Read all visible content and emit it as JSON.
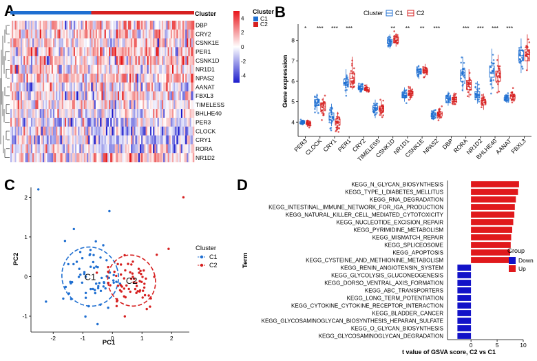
{
  "colors": {
    "c1": "#1f6fd1",
    "c2": "#d62020",
    "up": "#e0191c",
    "down": "#1212c8",
    "heat_high": "#e8151b",
    "heat_low": "#1c1ccc"
  },
  "panels": {
    "a": "A",
    "b": "B",
    "c": "C",
    "d": "D"
  },
  "chart_data": [
    {
      "type": "heatmap",
      "panel": "A",
      "annotation_title": "Cluster",
      "legend_title": "Cluster",
      "legend": [
        "C1",
        "C2"
      ],
      "scale_ticks": [
        "4",
        "2",
        "0",
        "-2",
        "-4"
      ],
      "rows": [
        "DBP",
        "CRY2",
        "CSNK1E",
        "PER1",
        "CSNK1D",
        "NR1D1",
        "NPAS2",
        "AANAT",
        "FBXL3",
        "TIMELESS",
        "BHLHE40",
        "PER3",
        "CLOCK",
        "CRY1",
        "RORA",
        "NR1D2"
      ],
      "row_bias": [
        0.3,
        0.25,
        0.2,
        0.35,
        0.3,
        0.15,
        0.2,
        0.1,
        0.05,
        0,
        0,
        -0.2,
        -0.4,
        -0.35,
        -0.15,
        0.25
      ],
      "n_c1": 55,
      "n_c2": 70,
      "range": [
        -5,
        5
      ]
    },
    {
      "type": "box",
      "panel": "B",
      "legend_title": "Cluster",
      "legend": [
        "C1",
        "C2"
      ],
      "ylabel": "Gene expression",
      "ylim": [
        3.3,
        8.8
      ],
      "yticks": [
        4,
        5,
        6,
        7,
        8
      ],
      "categories": [
        "PER3",
        "CLOCK",
        "CRY1",
        "PER1",
        "CRY2",
        "TIMELESS",
        "CSNK1D",
        "NR1D1",
        "CSNK1E",
        "NPAS2",
        "DBP",
        "RORA",
        "NR1D2",
        "BHLHE40",
        "AANAT",
        "FBXL3"
      ],
      "significance": [
        "*",
        "***",
        "***",
        "***",
        "",
        "",
        "**",
        "**",
        "**",
        "***",
        "",
        "***",
        "***",
        "***",
        "***",
        ""
      ],
      "series": [
        {
          "name": "C1",
          "stats": [
            [
              3.85,
              3.93,
              3.97,
              4.02,
              4.1
            ],
            [
              4.5,
              4.8,
              4.95,
              5.1,
              5.4
            ],
            [
              3.8,
              4.1,
              4.25,
              4.45,
              4.9
            ],
            [
              5.4,
              5.8,
              5.95,
              6.1,
              6.6
            ],
            [
              5.5,
              5.58,
              5.65,
              5.75,
              5.9
            ],
            [
              4.2,
              4.6,
              4.7,
              4.8,
              5.1
            ],
            [
              7.6,
              7.85,
              7.95,
              8.05,
              8.3
            ],
            [
              5.0,
              5.2,
              5.3,
              5.4,
              5.7
            ],
            [
              6.1,
              6.35,
              6.45,
              6.55,
              6.8
            ],
            [
              4.1,
              4.25,
              4.35,
              4.45,
              4.6
            ],
            [
              4.8,
              5.05,
              5.15,
              5.25,
              5.5
            ],
            [
              5.5,
              6.0,
              6.3,
              6.55,
              7.2
            ],
            [
              4.9,
              5.2,
              5.35,
              5.5,
              6.0
            ],
            [
              5.6,
              6.2,
              6.45,
              6.75,
              7.6
            ],
            [
              4.95,
              5.05,
              5.12,
              5.2,
              5.35
            ],
            [
              6.4,
              7.0,
              7.25,
              7.5,
              8.1
            ]
          ]
        },
        {
          "name": "C2",
          "stats": [
            [
              3.82,
              3.88,
              3.93,
              3.98,
              4.05
            ],
            [
              4.3,
              4.6,
              4.75,
              4.95,
              5.2
            ],
            [
              3.6,
              3.85,
              4.0,
              4.15,
              4.5
            ],
            [
              5.6,
              5.9,
              6.15,
              6.4,
              7.2
            ],
            [
              5.45,
              5.55,
              5.6,
              5.68,
              5.85
            ],
            [
              4.3,
              4.55,
              4.65,
              4.78,
              5.05
            ],
            [
              7.7,
              7.9,
              8.0,
              8.12,
              8.35
            ],
            [
              5.1,
              5.3,
              5.4,
              5.5,
              5.75
            ],
            [
              6.2,
              6.42,
              6.52,
              6.6,
              6.85
            ],
            [
              4.15,
              4.3,
              4.4,
              4.5,
              4.7
            ],
            [
              4.85,
              5.0,
              5.1,
              5.2,
              5.45
            ],
            [
              5.2,
              5.6,
              5.85,
              6.05,
              6.6
            ],
            [
              4.6,
              4.85,
              4.95,
              5.05,
              5.4
            ],
            [
              5.5,
              6.0,
              6.25,
              6.5,
              7.3
            ],
            [
              5.05,
              5.15,
              5.25,
              5.33,
              5.5
            ],
            [
              6.5,
              7.0,
              7.3,
              7.55,
              8.3
            ]
          ]
        }
      ]
    },
    {
      "type": "scatter",
      "panel": "C",
      "xlabel": "PC1",
      "ylabel": "PC2",
      "xlim": [
        -2.75,
        2.6
      ],
      "ylim": [
        -1.4,
        2.25
      ],
      "xticks": [
        -2,
        -1,
        0,
        1,
        2
      ],
      "yticks": [
        -1,
        0,
        1,
        2
      ],
      "legend_title": "Cluster",
      "legend": [
        "C1",
        "C2"
      ],
      "centroid_labels": [
        "C1",
        "C2"
      ],
      "series": [
        {
          "name": "C1",
          "center": [
            -0.75,
            0.0
          ],
          "spread": [
            0.45,
            0.42
          ],
          "ellipse": [
            0.95,
            0.75
          ],
          "outliers": [
            [
              -2.5,
              2.2
            ],
            [
              -1.6,
              0.9
            ],
            [
              -0.1,
              1.65
            ],
            [
              -1.3,
              1.2
            ],
            [
              -0.5,
              -1.2
            ]
          ]
        },
        {
          "name": "C2",
          "center": [
            0.65,
            -0.1
          ],
          "spread": [
            0.45,
            0.38
          ],
          "ellipse": [
            0.8,
            0.65
          ],
          "outliers": [
            [
              2.4,
              2.0
            ],
            [
              1.9,
              0.7
            ],
            [
              1.5,
              0.55
            ],
            [
              1.3,
              -0.55
            ]
          ]
        }
      ]
    },
    {
      "type": "bar",
      "panel": "D",
      "orientation": "horizontal",
      "ylabel": "Term",
      "xlabel": "t value of GSVA score, C2 vs C1",
      "xlim": [
        -4.5,
        10
      ],
      "xticks": [
        0,
        5,
        10
      ],
      "legend_title": "Group",
      "legend": [
        "Down",
        "Up"
      ],
      "categories": [
        "KEGG_N_GLYCAN_BIOSYNTHESIS",
        "KEGG_TYPE_I_DIABETES_MELLITUS",
        "KEGG_RNA_DEGRADATION",
        "KEGG_INTESTINAL_IMMUNE_NETWORK_FOR_IGA_PRODUCTION",
        "KEGG_NATURAL_KILLER_CELL_MEDIATED_CYTOTOXICITY",
        "KEGG_NUCLEOTIDE_EXCISION_REPAIR",
        "KEGG_PYRIMIDINE_METABOLISM",
        "KEGG_MISMATCH_REPAIR",
        "KEGG_SPLICEOSOME",
        "KEGG_APOPTOSIS",
        "KEGG_CYSTEINE_AND_METHIONINE_METABOLISM",
        "KEGG_RENIN_ANGIOTENSIN_SYSTEM",
        "KEGG_GLYCOLYSIS_GLUCONEOGENESIS",
        "KEGG_DORSO_VENTRAL_AXIS_FORMATION",
        "KEGG_ABC_TRANSPORTERS",
        "KEGG_LONG_TERM_POTENTIATION",
        "KEGG_CYTOKINE_CYTOKINE_RECEPTOR_INTERACTION",
        "KEGG_BLADDER_CANCER",
        "KEGG_GLYCOSAMINOGLYCAN_BIOSYNTHESIS_HEPARAN_SULFATE",
        "KEGG_O_GLYCAN_BIOSYNTHESIS",
        "KEGG_GLYCOSAMINOGLYCAN_DEGRADATION"
      ],
      "values": [
        9.2,
        9.0,
        8.6,
        8.4,
        8.3,
        8.1,
        7.9,
        7.7,
        7.6,
        7.5,
        7.3,
        -2.6,
        -2.6,
        -2.6,
        -2.6,
        -2.6,
        -2.6,
        -2.6,
        -2.6,
        -2.6,
        -2.6
      ],
      "groups": [
        "Up",
        "Up",
        "Up",
        "Up",
        "Up",
        "Up",
        "Up",
        "Up",
        "Up",
        "Up",
        "Up",
        "Down",
        "Down",
        "Down",
        "Down",
        "Down",
        "Down",
        "Down",
        "Down",
        "Down",
        "Down"
      ]
    }
  ]
}
